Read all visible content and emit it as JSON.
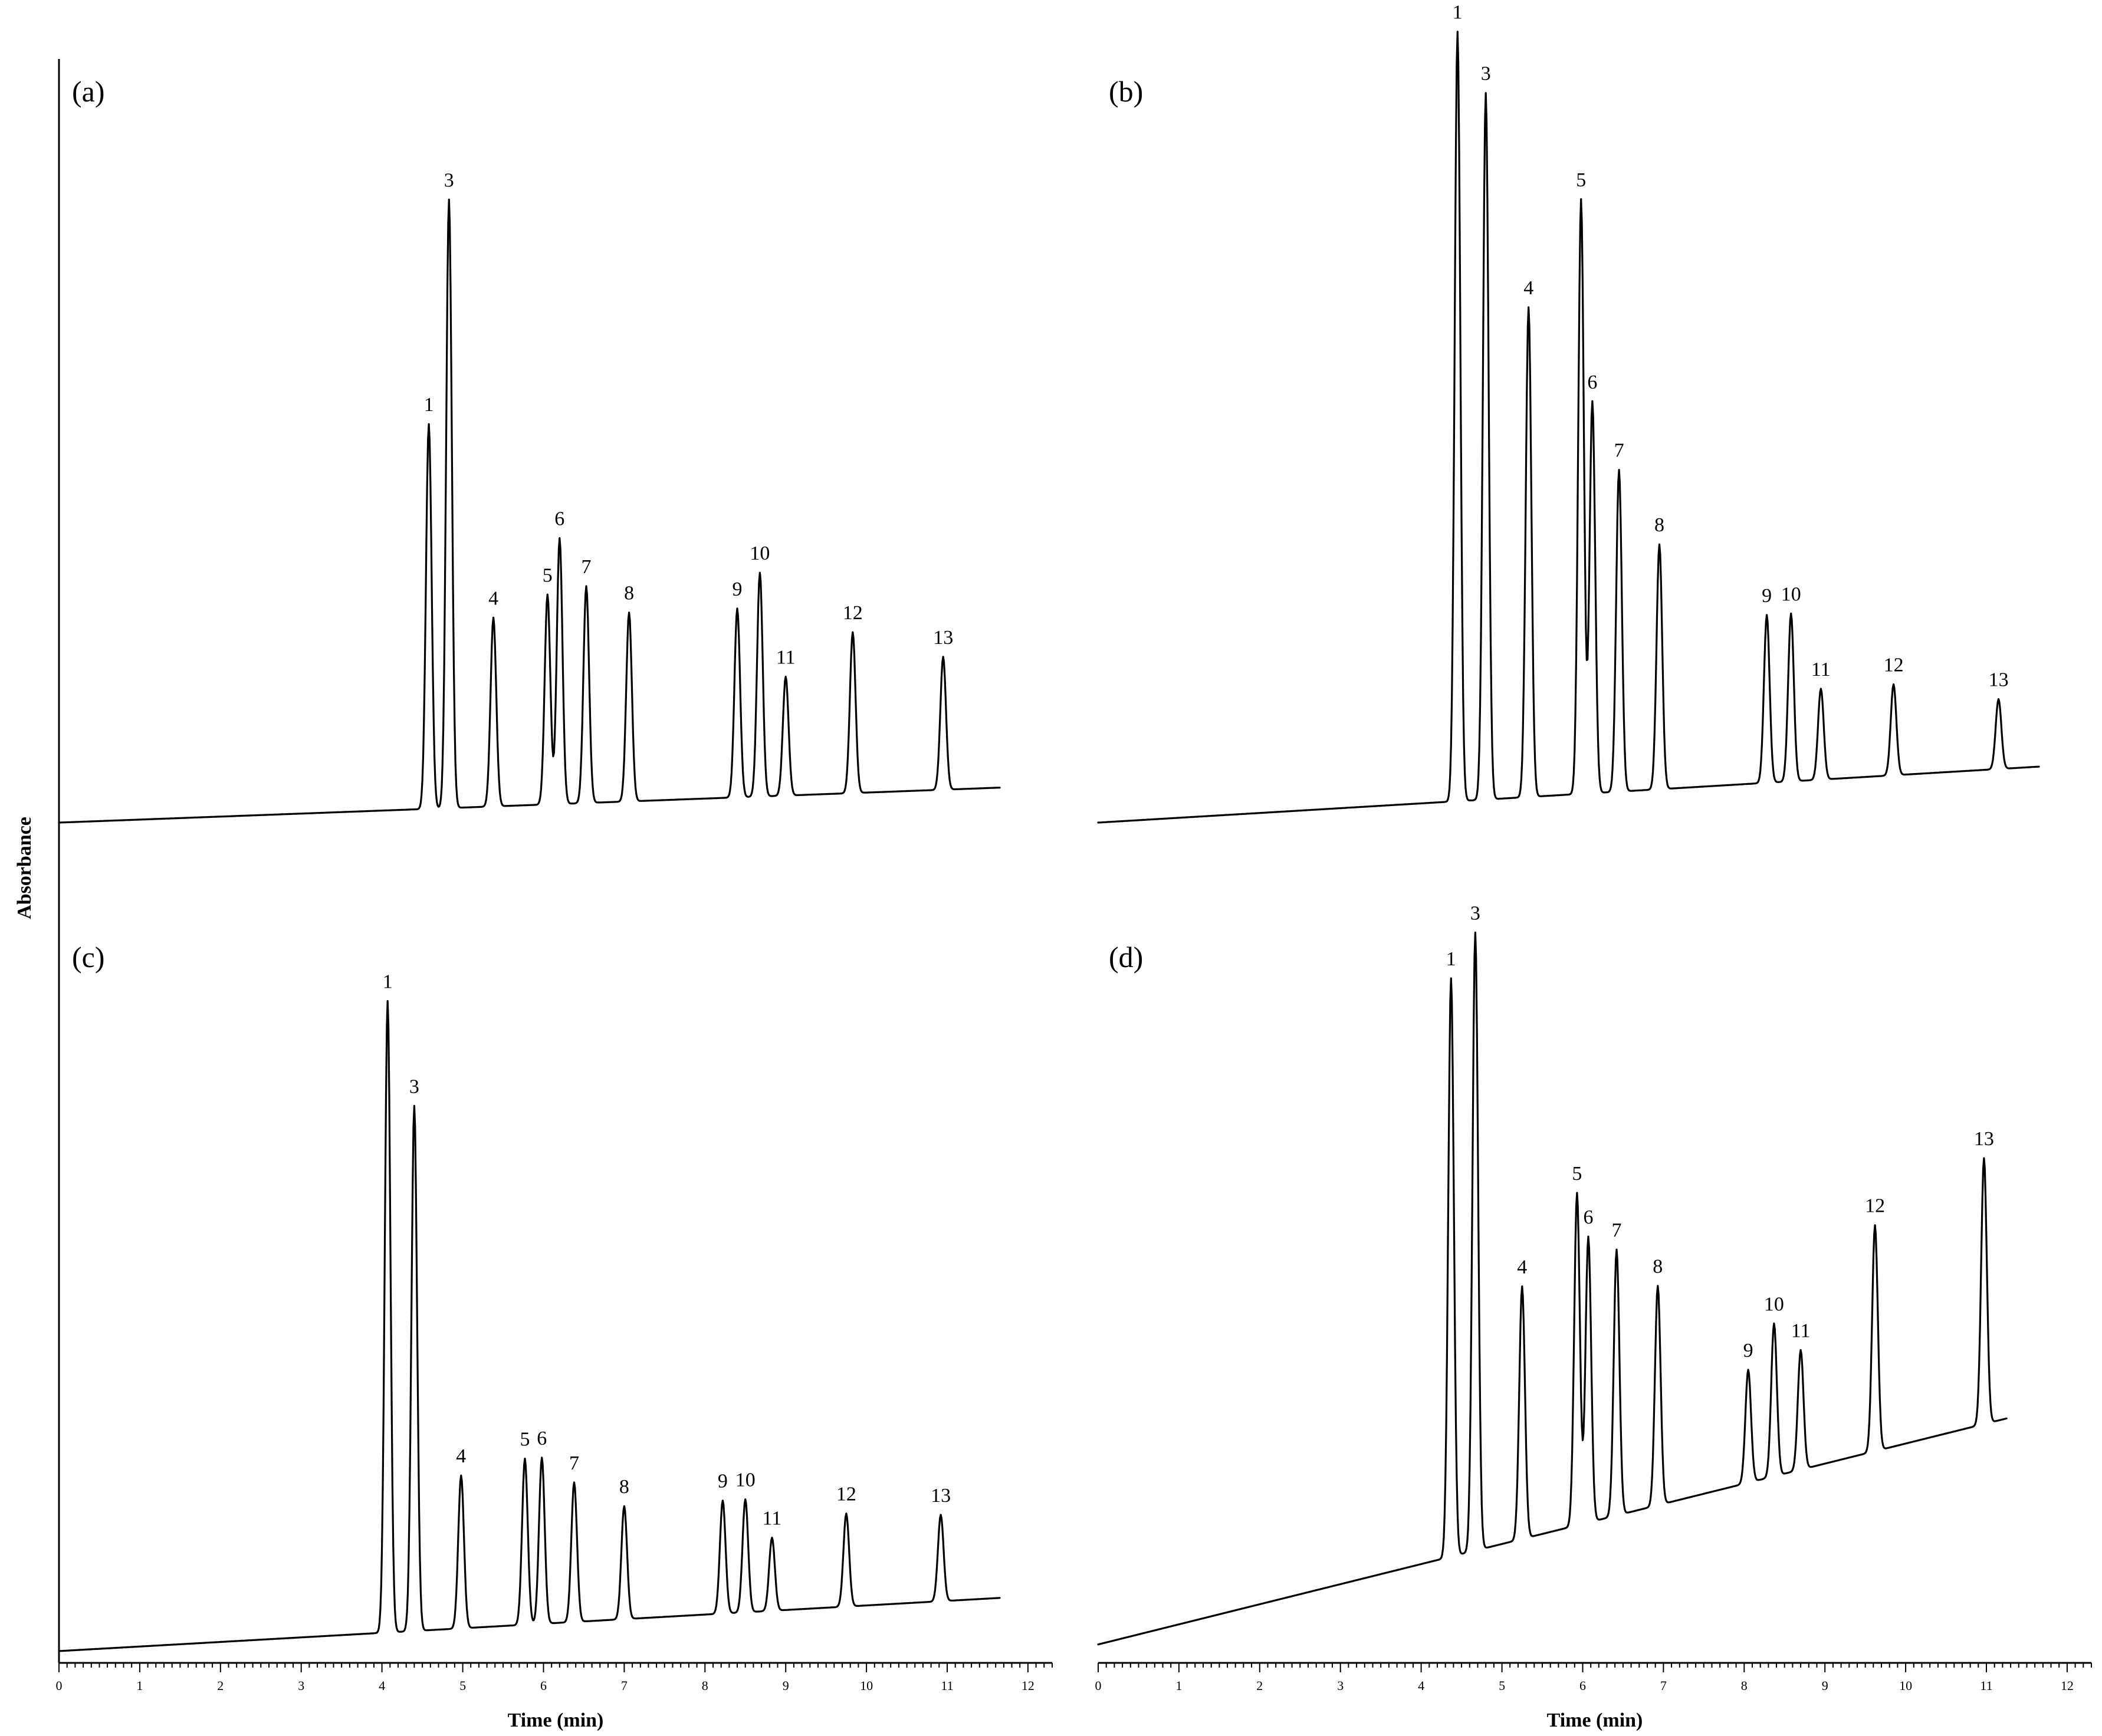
{
  "chart_data": {
    "type": "line",
    "ylabel": "Absorbance",
    "panels": [
      {
        "label": "(a)",
        "xlabel": "",
        "xlim": [
          0,
          12.3
        ],
        "xticks": [
          0,
          1,
          2,
          3,
          4,
          5,
          6,
          7,
          8,
          9,
          10,
          11,
          12
        ],
        "baseline_start": 0,
        "baseline_end": 0.05,
        "peaks": [
          {
            "id": "1",
            "time": 4.58,
            "height": 0.55
          },
          {
            "id": "3",
            "time": 4.83,
            "height": 0.87
          },
          {
            "id": "4",
            "time": 5.38,
            "height": 0.27
          },
          {
            "id": "5",
            "time": 6.05,
            "height": 0.3
          },
          {
            "id": "6",
            "time": 6.2,
            "height": 0.38
          },
          {
            "id": "7",
            "time": 6.53,
            "height": 0.31
          },
          {
            "id": "8",
            "time": 7.06,
            "height": 0.27
          },
          {
            "id": "9",
            "time": 8.4,
            "height": 0.27
          },
          {
            "id": "10",
            "time": 8.68,
            "height": 0.32
          },
          {
            "id": "11",
            "time": 9.0,
            "height": 0.17
          },
          {
            "id": "12",
            "time": 9.83,
            "height": 0.23
          },
          {
            "id": "13",
            "time": 10.95,
            "height": 0.19
          }
        ]
      },
      {
        "label": "(b)",
        "xlabel": "Time (min)",
        "xlim": [
          0,
          12.3
        ],
        "xticks": [
          0,
          1,
          2,
          3,
          4,
          5,
          6,
          7,
          8,
          9,
          10,
          11,
          12
        ],
        "baseline_start": 0,
        "baseline_end": 0.08,
        "peaks": [
          {
            "id": "1",
            "time": 4.45,
            "height": 1.1
          },
          {
            "id": "3",
            "time": 4.8,
            "height": 1.01
          },
          {
            "id": "4",
            "time": 5.33,
            "height": 0.7
          },
          {
            "id": "5",
            "time": 5.98,
            "height": 0.85
          },
          {
            "id": "6",
            "time": 6.12,
            "height": 0.56
          },
          {
            "id": "7",
            "time": 6.45,
            "height": 0.46
          },
          {
            "id": "8",
            "time": 6.95,
            "height": 0.35
          },
          {
            "id": "9",
            "time": 8.28,
            "height": 0.24
          },
          {
            "id": "10",
            "time": 8.58,
            "height": 0.24
          },
          {
            "id": "11",
            "time": 8.95,
            "height": 0.13
          },
          {
            "id": "12",
            "time": 9.85,
            "height": 0.13
          },
          {
            "id": "13",
            "time": 11.15,
            "height": 0.1
          }
        ]
      },
      {
        "label": "(c)",
        "xlabel": "Time (min)",
        "xlim": [
          0,
          12.3
        ],
        "xticks": [
          0,
          1,
          2,
          3,
          4,
          5,
          6,
          7,
          8,
          9,
          10,
          11,
          12
        ],
        "baseline_start": 0,
        "baseline_end": 0.08,
        "peaks": [
          {
            "id": "1",
            "time": 4.07,
            "height": 0.95
          },
          {
            "id": "3",
            "time": 4.4,
            "height": 0.79
          },
          {
            "id": "4",
            "time": 4.98,
            "height": 0.23
          },
          {
            "id": "5",
            "time": 5.77,
            "height": 0.25
          },
          {
            "id": "6",
            "time": 5.98,
            "height": 0.25
          },
          {
            "id": "7",
            "time": 6.38,
            "height": 0.21
          },
          {
            "id": "8",
            "time": 7.0,
            "height": 0.17
          },
          {
            "id": "9",
            "time": 8.22,
            "height": 0.17
          },
          {
            "id": "10",
            "time": 8.5,
            "height": 0.17
          },
          {
            "id": "11",
            "time": 8.83,
            "height": 0.11
          },
          {
            "id": "12",
            "time": 9.75,
            "height": 0.14
          },
          {
            "id": "13",
            "time": 10.92,
            "height": 0.13
          }
        ]
      },
      {
        "label": "(d)",
        "xlabel": "",
        "xlim": [
          0,
          12.3
        ],
        "xticks": [
          0,
          1,
          2,
          3,
          4,
          5,
          6,
          7,
          8,
          9,
          10,
          11,
          12
        ],
        "baseline_start": 0.01,
        "baseline_end": 0.35,
        "peaks": [
          {
            "id": "1",
            "time": 4.37,
            "height": 0.87
          },
          {
            "id": "3",
            "time": 4.67,
            "height": 0.93
          },
          {
            "id": "4",
            "time": 5.25,
            "height": 0.38
          },
          {
            "id": "5",
            "time": 5.93,
            "height": 0.5
          },
          {
            "id": "6",
            "time": 6.07,
            "height": 0.43
          },
          {
            "id": "7",
            "time": 6.42,
            "height": 0.4
          },
          {
            "id": "8",
            "time": 6.93,
            "height": 0.33
          },
          {
            "id": "9",
            "time": 8.05,
            "height": 0.17
          },
          {
            "id": "10",
            "time": 8.37,
            "height": 0.23
          },
          {
            "id": "11",
            "time": 8.7,
            "height": 0.18
          },
          {
            "id": "12",
            "time": 9.62,
            "height": 0.34
          },
          {
            "id": "13",
            "time": 10.97,
            "height": 0.4
          }
        ]
      }
    ]
  }
}
